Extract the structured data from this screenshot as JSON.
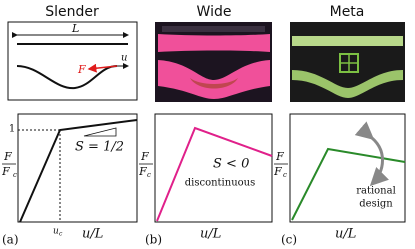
{
  "columns": [
    {
      "title": "Slender",
      "label": "(a)"
    },
    {
      "title": "Wide",
      "label": "(b)"
    },
    {
      "title": "Meta",
      "label": "(c)"
    }
  ],
  "sketch": {
    "length": "L",
    "force": "F",
    "displacement": "u"
  },
  "plots": [
    {
      "y_numerator": "F",
      "y_denominator": "F",
      "y_subscript": "c",
      "x_label": "u/L",
      "y_tick": "1",
      "x_tick": "u",
      "x_tick_subscript": "c",
      "annotation": "S = 1/2"
    },
    {
      "y_numerator": "F",
      "y_denominator": "F",
      "y_subscript": "c",
      "x_label": "u/L",
      "annotation": "S < 0",
      "note": "discontinuous"
    },
    {
      "y_numerator": "F",
      "y_denominator": "F",
      "y_subscript": "c",
      "x_label": "u/L",
      "note_line1": "rational",
      "note_line2": "design"
    }
  ]
}
